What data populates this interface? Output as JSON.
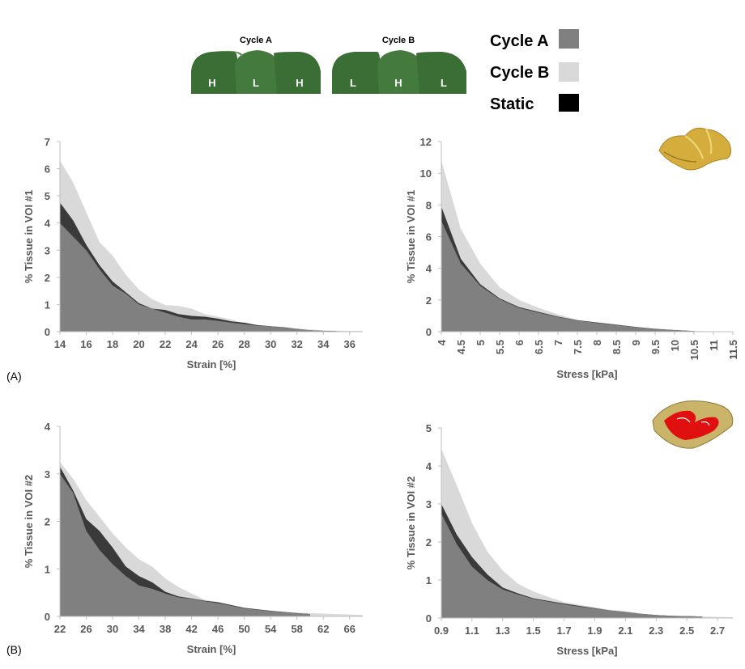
{
  "legend": {
    "items": [
      {
        "label": "Cycle A",
        "color": "#808080"
      },
      {
        "label": "Cycle B",
        "color": "#d9d9d9"
      },
      {
        "label": "Static",
        "color": "#000000"
      }
    ]
  },
  "schematic": {
    "cycle_a_title": "Cycle A",
    "cycle_a_pads": [
      "H",
      "L",
      "H"
    ],
    "cycle_b_title": "Cycle B",
    "cycle_b_pads": [
      "L",
      "H",
      "L"
    ],
    "pad_color": "#3b6e35"
  },
  "panel_labels": {
    "a": "(A)",
    "b": "(B)"
  },
  "colors": {
    "cycle_a": "#808080",
    "cycle_b": "#d9d9d9",
    "static": "#3a3a3a",
    "axis": "#bfbfbf"
  },
  "chart_data": [
    {
      "id": "a-strain",
      "type": "area",
      "xlabel": "Strain [%]",
      "ylabel": "% Tissue in VOI #1",
      "xlim": [
        14,
        37
      ],
      "ylim": [
        0,
        7
      ],
      "xticks": [
        14,
        16,
        18,
        20,
        22,
        24,
        26,
        28,
        30,
        32,
        34,
        36
      ],
      "yticks": [
        0,
        1,
        2,
        3,
        4,
        5,
        6,
        7
      ],
      "series": [
        {
          "name": "Cycle B",
          "x": [
            14,
            15,
            16,
            17,
            18,
            19,
            20,
            21,
            22,
            23,
            24,
            25,
            26,
            27,
            28,
            29,
            30,
            31,
            32,
            33,
            34,
            35,
            36,
            37
          ],
          "values": [
            6.3,
            5.5,
            4.4,
            3.3,
            2.8,
            2.1,
            1.55,
            1.2,
            0.98,
            0.95,
            0.85,
            0.65,
            0.55,
            0.45,
            0.3,
            0.25,
            0.2,
            0.18,
            0.12,
            0.08,
            0.05,
            0.04,
            0.03,
            0.02
          ]
        },
        {
          "name": "Static",
          "x": [
            14,
            15,
            16,
            17,
            18,
            19,
            20,
            21,
            22,
            23,
            24,
            25,
            26,
            27,
            28,
            29,
            30,
            31,
            32,
            33,
            34,
            35
          ],
          "values": [
            4.75,
            4.1,
            3.2,
            2.45,
            1.85,
            1.45,
            1.05,
            0.85,
            0.8,
            0.65,
            0.58,
            0.55,
            0.48,
            0.38,
            0.33,
            0.24,
            0.2,
            0.16,
            0.1,
            0.05,
            0.03,
            0.02
          ]
        },
        {
          "name": "Cycle A",
          "x": [
            14,
            15,
            16,
            17,
            18,
            19,
            20,
            21,
            22,
            23,
            24,
            25,
            26,
            27,
            28,
            29,
            30,
            31,
            32,
            33,
            34,
            35
          ],
          "values": [
            4.0,
            3.5,
            3.0,
            2.3,
            1.7,
            1.4,
            1.0,
            0.85,
            0.7,
            0.55,
            0.45,
            0.45,
            0.4,
            0.33,
            0.28,
            0.22,
            0.2,
            0.15,
            0.1,
            0.05,
            0.03,
            0.02
          ]
        }
      ]
    },
    {
      "id": "a-stress",
      "type": "area",
      "xlabel": "Stress [kPa]",
      "ylabel": "% Tissue in VOI #1",
      "xlim": [
        4,
        11.5
      ],
      "ylim": [
        0,
        12
      ],
      "xticks": [
        4,
        4.5,
        5,
        5.5,
        6,
        6.5,
        7,
        7.5,
        8,
        8.5,
        9,
        9.5,
        10,
        10.5,
        11,
        11.5
      ],
      "yticks": [
        0,
        2,
        4,
        6,
        8,
        10,
        12
      ],
      "series": [
        {
          "name": "Cycle B",
          "x": [
            4,
            4.5,
            5,
            5.5,
            6,
            6.5,
            7,
            7.5,
            8,
            8.5,
            9,
            9.5,
            10,
            10.5,
            11
          ],
          "values": [
            10.8,
            6.5,
            4.3,
            2.8,
            2.0,
            1.5,
            1.1,
            0.75,
            0.6,
            0.45,
            0.3,
            0.2,
            0.12,
            0.05,
            0.02
          ]
        },
        {
          "name": "Static",
          "x": [
            4,
            4.5,
            5,
            5.5,
            6,
            6.5,
            7,
            7.5,
            8,
            8.5,
            9,
            9.5,
            10,
            10.5
          ],
          "values": [
            7.9,
            4.6,
            3.0,
            2.1,
            1.55,
            1.25,
            0.95,
            0.72,
            0.58,
            0.45,
            0.3,
            0.18,
            0.1,
            0.04
          ]
        },
        {
          "name": "Cycle A",
          "x": [
            4,
            4.5,
            5,
            5.5,
            6,
            6.5,
            7,
            7.5,
            8,
            8.5,
            9,
            9.5,
            10,
            10.5
          ],
          "values": [
            7.0,
            4.3,
            2.9,
            2.05,
            1.5,
            1.2,
            0.92,
            0.7,
            0.55,
            0.42,
            0.28,
            0.17,
            0.1,
            0.04
          ]
        }
      ]
    },
    {
      "id": "b-strain",
      "type": "area",
      "xlabel": "Strain [%]",
      "ylabel": "% Tissue in VOI #2",
      "xlim": [
        22,
        68
      ],
      "ylim": [
        0,
        4
      ],
      "xticks": [
        22,
        26,
        30,
        34,
        38,
        42,
        46,
        50,
        54,
        58,
        62,
        66
      ],
      "yticks": [
        0,
        1,
        2,
        3,
        4
      ],
      "series": [
        {
          "name": "Cycle B",
          "x": [
            22,
            24,
            26,
            28,
            30,
            32,
            34,
            36,
            38,
            40,
            42,
            44,
            46,
            50,
            54,
            58,
            62,
            66,
            68
          ],
          "values": [
            3.25,
            2.9,
            2.45,
            2.1,
            1.75,
            1.45,
            1.2,
            1.05,
            0.8,
            0.62,
            0.48,
            0.35,
            0.3,
            0.18,
            0.12,
            0.08,
            0.06,
            0.04,
            0.03
          ]
        },
        {
          "name": "Static",
          "x": [
            22,
            24,
            26,
            28,
            30,
            32,
            34,
            36,
            38,
            40,
            42,
            44,
            46,
            50,
            54,
            58,
            60
          ],
          "values": [
            3.15,
            2.65,
            2.05,
            1.8,
            1.45,
            1.05,
            0.85,
            0.72,
            0.52,
            0.42,
            0.38,
            0.33,
            0.3,
            0.18,
            0.12,
            0.07,
            0.05
          ]
        },
        {
          "name": "Cycle A",
          "x": [
            22,
            24,
            26,
            28,
            30,
            32,
            34,
            36,
            38,
            40,
            42,
            44,
            46,
            50,
            54,
            58,
            60
          ],
          "values": [
            3.0,
            2.6,
            1.8,
            1.4,
            1.1,
            0.85,
            0.65,
            0.58,
            0.48,
            0.4,
            0.37,
            0.32,
            0.28,
            0.17,
            0.11,
            0.07,
            0.05
          ]
        }
      ]
    },
    {
      "id": "b-stress",
      "type": "area",
      "xlabel": "Stress [kPa]",
      "ylabel": "% Tissue in VOI #2",
      "xlim": [
        0.9,
        2.8
      ],
      "ylim": [
        0,
        5
      ],
      "xticks": [
        0.9,
        1.1,
        1.3,
        1.5,
        1.7,
        1.9,
        2.1,
        2.3,
        2.5,
        2.7
      ],
      "yticks": [
        0,
        1,
        2,
        3,
        4,
        5
      ],
      "series": [
        {
          "name": "Cycle B",
          "x": [
            0.9,
            1.0,
            1.1,
            1.2,
            1.3,
            1.4,
            1.5,
            1.6,
            1.7,
            1.8,
            1.9,
            2.0,
            2.1,
            2.2,
            2.3,
            2.4,
            2.5,
            2.6,
            2.7,
            2.8
          ],
          "values": [
            4.45,
            3.5,
            2.5,
            1.75,
            1.25,
            0.9,
            0.7,
            0.55,
            0.42,
            0.35,
            0.28,
            0.22,
            0.18,
            0.12,
            0.08,
            0.06,
            0.05,
            0.04,
            0.03,
            0.02
          ]
        },
        {
          "name": "Static",
          "x": [
            0.9,
            1.0,
            1.1,
            1.2,
            1.3,
            1.4,
            1.5,
            1.6,
            1.7,
            1.8,
            1.9,
            2.0,
            2.1,
            2.2,
            2.3,
            2.4,
            2.5,
            2.6
          ],
          "values": [
            3.0,
            2.2,
            1.6,
            1.15,
            0.8,
            0.65,
            0.52,
            0.45,
            0.38,
            0.32,
            0.26,
            0.2,
            0.16,
            0.11,
            0.08,
            0.06,
            0.05,
            0.04
          ]
        },
        {
          "name": "Cycle A",
          "x": [
            0.9,
            1.0,
            1.1,
            1.2,
            1.3,
            1.4,
            1.5,
            1.6,
            1.7,
            1.8,
            1.9,
            2.0,
            2.1,
            2.2,
            2.3,
            2.4,
            2.5,
            2.6
          ],
          "values": [
            2.75,
            1.95,
            1.35,
            1.0,
            0.75,
            0.62,
            0.5,
            0.43,
            0.36,
            0.3,
            0.25,
            0.2,
            0.16,
            0.11,
            0.08,
            0.06,
            0.05,
            0.04
          ]
        }
      ]
    }
  ]
}
